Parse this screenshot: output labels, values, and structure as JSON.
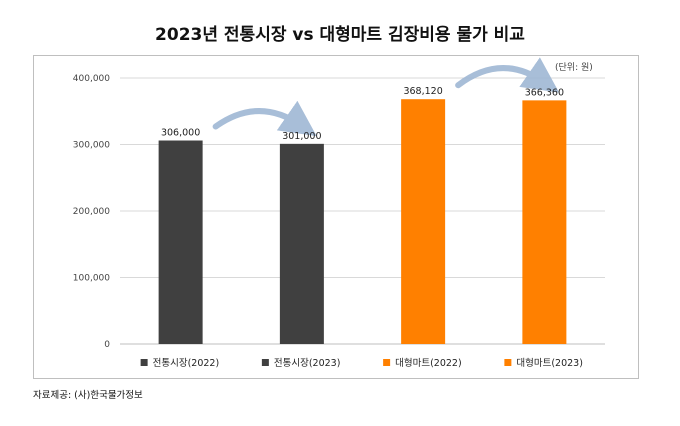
{
  "title": "2023년 전통시장 vs 대형마트 김장비용 물가 비교",
  "unit_note": "(단위: 원)",
  "source": "자료제공: (사)한국물가정보",
  "colors": {
    "traditional": "#404040",
    "mart": "#ff8000",
    "grid": "#d9d9d9",
    "arrow": "#9fb7d4"
  },
  "chart_data": {
    "type": "bar",
    "categories": [
      "전통시장(2022)",
      "전통시장(2023)",
      "대형마트(2022)",
      "대형마트(2023)"
    ],
    "values": [
      306000,
      301000,
      368120,
      366360
    ],
    "value_labels": [
      "306,000",
      "301,000",
      "368,120",
      "366,360"
    ],
    "bar_colors": [
      "#404040",
      "#404040",
      "#ff8000",
      "#ff8000"
    ],
    "ylim": [
      0,
      400000
    ],
    "yticks": [
      0,
      100000,
      200000,
      300000,
      400000
    ],
    "ytick_labels": [
      "0",
      "100,000",
      "200,000",
      "300,000",
      "400,000"
    ],
    "grid": true,
    "legend": "bottom",
    "arrows": [
      [
        0,
        1
      ],
      [
        2,
        3
      ]
    ]
  }
}
